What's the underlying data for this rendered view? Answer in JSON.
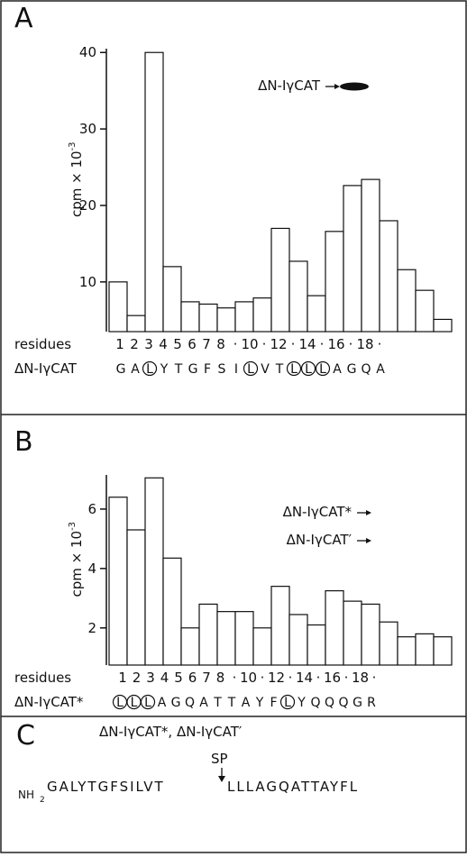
{
  "chart_data": [
    {
      "type": "bar",
      "panel_label": "A",
      "y_label": "cpm × 10",
      "y_label_exp": "-3",
      "x_label": "residues",
      "sequence_label": "ΔN-IγCAT",
      "categories": [
        "1",
        "2",
        "3",
        "4",
        "5",
        "6",
        "7",
        "8",
        "·",
        "10",
        "·",
        "12",
        "·",
        "14",
        "·",
        "16",
        "·",
        "18",
        "·"
      ],
      "values": [
        10,
        5.6,
        40,
        12,
        7.4,
        7.1,
        6.6,
        7.4,
        7.9,
        17,
        12.7,
        8.2,
        16.6,
        22.6,
        23.4,
        18,
        11.6,
        8.9,
        5.1
      ],
      "sequence": [
        "G",
        "A",
        "L",
        "Y",
        "T",
        "G",
        "F",
        "S",
        "I",
        "L",
        "V",
        "T",
        "L",
        "L",
        "L",
        "A",
        "G",
        "Q",
        "A"
      ],
      "circled": [
        false,
        false,
        true,
        false,
        false,
        false,
        false,
        false,
        false,
        true,
        false,
        false,
        true,
        true,
        true,
        false,
        false,
        false,
        false
      ],
      "ylim": [
        3.5,
        40.5
      ],
      "yticks": [
        10,
        20,
        30,
        40
      ],
      "color": "#ffffff",
      "annotations": [
        "ΔN-IγCAT"
      ]
    },
    {
      "type": "bar",
      "panel_label": "B",
      "y_label": "cpm × 10",
      "y_label_exp": "-3",
      "x_label": "residues",
      "sequence_label": "ΔN-IγCAT*",
      "categories": [
        "1",
        "2",
        "3",
        "4",
        "5",
        "6",
        "7",
        "8",
        "·",
        "10",
        "·",
        "12",
        "·",
        "14",
        "·",
        "16",
        "·",
        "18",
        "·"
      ],
      "values": [
        6.4,
        5.3,
        7.05,
        4.35,
        2.0,
        2.8,
        2.55,
        2.55,
        2.0,
        3.4,
        2.45,
        2.1,
        3.25,
        2.9,
        2.8,
        2.2,
        1.7,
        1.8,
        1.7
      ],
      "sequence": [
        "L",
        "L",
        "L",
        "A",
        "G",
        "Q",
        "A",
        "T",
        "T",
        "A",
        "Y",
        "F",
        "L",
        "Y",
        "Q",
        "Q",
        "Q",
        "G",
        "R"
      ],
      "circled": [
        true,
        true,
        true,
        false,
        false,
        false,
        false,
        false,
        false,
        false,
        false,
        false,
        true,
        false,
        false,
        false,
        false,
        false,
        false
      ],
      "ylim": [
        0.75,
        7.15
      ],
      "yticks": [
        2,
        4,
        6
      ],
      "color": "#ffffff",
      "annotations": [
        "ΔN-IγCAT*",
        "ΔN-IγCAT′"
      ]
    }
  ],
  "panel_c": {
    "label": "C",
    "title": "ΔN-IγCAT*, ΔN-IγCAT′",
    "site": "SP",
    "nh": "NH",
    "nh_sub": "2",
    "seq_left": "GALYTGFSILVT",
    "seq_right": "LLLAGQATTAYFL"
  }
}
